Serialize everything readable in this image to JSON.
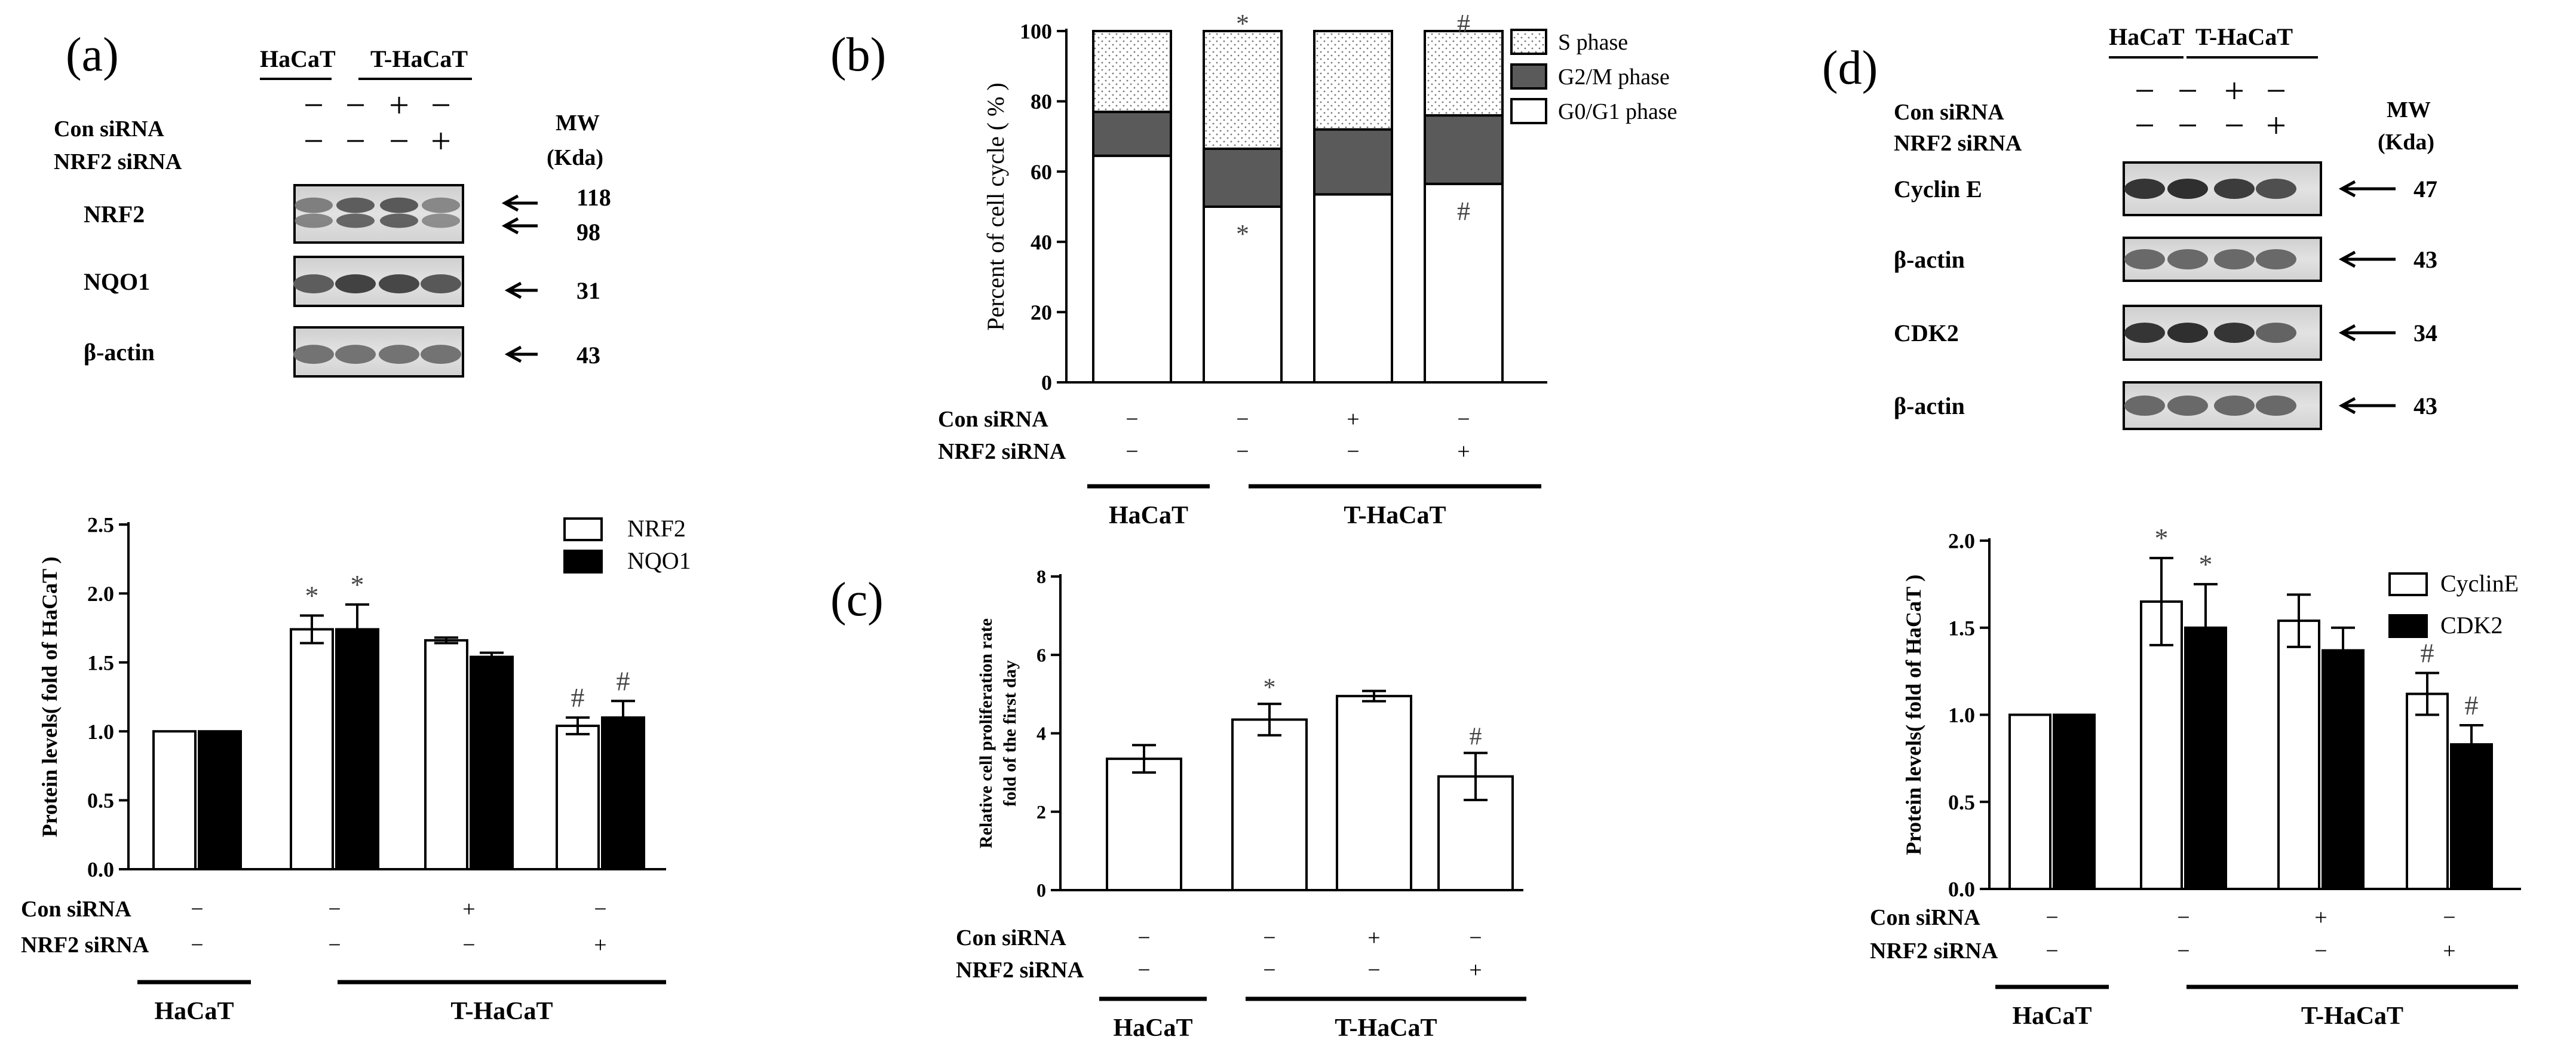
{
  "panels": {
    "a": {
      "label": "(a)",
      "blot": {
        "top_groups": [
          "HaCaT",
          "T-HaCaT"
        ],
        "treatments": [
          {
            "label": "Con siRNA",
            "marks": [
              "−",
              "−",
              "+",
              "−"
            ]
          },
          {
            "label": "NRF2 siRNA",
            "marks": [
              "−",
              "−",
              "−",
              "+"
            ]
          }
        ],
        "mw_header": [
          "MW",
          "(Kda)"
        ],
        "rows": [
          {
            "name": "NRF2",
            "mw": [
              "118",
              "98"
            ]
          },
          {
            "name": "NQO1",
            "mw": [
              "31"
            ]
          },
          {
            "name": "β-actin",
            "mw": [
              "43"
            ]
          }
        ]
      },
      "chart": {
        "ylabel": "Protein levels( fold of HaCaT )",
        "yticks": [
          "0.0",
          "0.5",
          "1.0",
          "1.5",
          "2.0",
          "2.5"
        ]
      }
    },
    "b": {
      "label": "(b)",
      "chart": {
        "ylabel": "Percent of cell cycle ( % )",
        "yticks": [
          "0",
          "20",
          "40",
          "60",
          "80",
          "100"
        ]
      }
    },
    "c": {
      "label": "(c)",
      "chart": {
        "ylabel_lines": [
          "Relative cell proliferation rate",
          "fold of the first day"
        ],
        "yticks": [
          "0",
          "2",
          "4",
          "6",
          "8"
        ]
      }
    },
    "d": {
      "label": "(d)",
      "blot": {
        "top_groups": [
          "HaCaT",
          "T-HaCaT"
        ],
        "treatments": [
          {
            "label": "Con siRNA",
            "marks": [
              "−",
              "−",
              "+",
              "−"
            ]
          },
          {
            "label": "NRF2 siRNA",
            "marks": [
              "−",
              "−",
              "−",
              "+"
            ]
          }
        ],
        "mw_header": [
          "MW",
          "(Kda)"
        ],
        "rows": [
          {
            "name": "Cyclin E",
            "mw": [
              "47"
            ]
          },
          {
            "name": "β-actin",
            "mw": [
              "43"
            ]
          },
          {
            "name": "CDK2",
            "mw": [
              "34"
            ]
          },
          {
            "name": "β-actin",
            "mw": [
              "43"
            ]
          }
        ]
      },
      "chart": {
        "ylabel": "Protein levels( fold of HaCaT )",
        "yticks": [
          "0.0",
          "0.5",
          "1.0",
          "1.5",
          "2.0"
        ]
      }
    }
  },
  "conditions": {
    "con_label": "Con siRNA",
    "nrf2_label": "NRF2 siRNA",
    "con_marks": [
      "−",
      "−",
      "+",
      "−"
    ],
    "nrf2_marks": [
      "−",
      "−",
      "−",
      "+"
    ],
    "group_haCaT": "HaCaT",
    "group_t": "T-HaCaT"
  },
  "chart_data": [
    {
      "id": "a",
      "type": "bar",
      "categories": [
        "HaCaT",
        "T-HaCaT",
        "T-HaCaT + Con siRNA",
        "T-HaCaT + NRF2 siRNA"
      ],
      "series": [
        {
          "name": "NRF2",
          "values": [
            1.0,
            1.74,
            1.66,
            1.04
          ],
          "errors": [
            0,
            0.1,
            0.02,
            0.06
          ],
          "color": "#ffffff",
          "annotations": [
            "",
            "*",
            "",
            "#"
          ]
        },
        {
          "name": "NQO1",
          "values": [
            1.0,
            1.74,
            1.54,
            1.1
          ],
          "errors": [
            0,
            0.18,
            0.03,
            0.12
          ],
          "color": "#000000",
          "annotations": [
            "",
            "*",
            "",
            "#"
          ]
        }
      ],
      "ylabel": "Protein levels( fold of HaCaT )",
      "ylim": [
        0,
        2.5
      ],
      "legend": "top-right"
    },
    {
      "id": "b",
      "type": "bar",
      "stacked": true,
      "categories": [
        "HaCaT",
        "T-HaCaT",
        "T-HaCaT + Con siRNA",
        "T-HaCaT + NRF2 siRNA"
      ],
      "series": [
        {
          "name": "G0/G1 phase",
          "values": [
            64.5,
            50,
            53.5,
            56.5
          ],
          "color": "#ffffff",
          "annotations": [
            "",
            "*",
            "",
            "#"
          ]
        },
        {
          "name": "G2/M phase",
          "values": [
            12.5,
            16.5,
            18.5,
            19.5
          ],
          "color": "#5a5a5a",
          "annotations": [
            "",
            "",
            "",
            ""
          ]
        },
        {
          "name": "S phase",
          "values": [
            23,
            33.5,
            28,
            24
          ],
          "color": "dotted",
          "annotations": [
            "",
            "*",
            "",
            "#"
          ]
        }
      ],
      "ylabel": "Percent of cell cycle ( % )",
      "ylim": [
        0,
        100
      ],
      "legend": "top-right"
    },
    {
      "id": "c",
      "type": "bar",
      "categories": [
        "HaCaT",
        "T-HaCaT",
        "T-HaCaT + Con siRNA",
        "T-HaCaT + NRF2 siRNA"
      ],
      "series": [
        {
          "name": "Relative cell proliferation rate",
          "values": [
            3.35,
            4.35,
            4.95,
            2.9
          ],
          "errors": [
            0.35,
            0.4,
            0.13,
            0.6
          ],
          "color": "#ffffff",
          "annotations": [
            "",
            "*",
            "",
            "#"
          ]
        }
      ],
      "ylabel": "Relative cell proliferation rate fold of the first day",
      "ylim": [
        0,
        8
      ]
    },
    {
      "id": "d",
      "type": "bar",
      "categories": [
        "HaCaT",
        "T-HaCaT",
        "T-HaCaT + Con siRNA",
        "T-HaCaT + NRF2 siRNA"
      ],
      "series": [
        {
          "name": "CyclinE",
          "values": [
            1.0,
            1.65,
            1.54,
            1.12
          ],
          "errors": [
            0,
            0.25,
            0.15,
            0.12
          ],
          "color": "#ffffff",
          "annotations": [
            "",
            "*",
            "",
            "#"
          ]
        },
        {
          "name": "CDK2",
          "values": [
            1.0,
            1.5,
            1.37,
            0.83
          ],
          "errors": [
            0,
            0.25,
            0.13,
            0.11
          ],
          "color": "#000000",
          "annotations": [
            "",
            "*",
            "",
            "#"
          ]
        }
      ],
      "ylabel": "Protein levels( fold of HaCaT )",
      "ylim": [
        0,
        2.0
      ],
      "legend": "top-right"
    }
  ]
}
